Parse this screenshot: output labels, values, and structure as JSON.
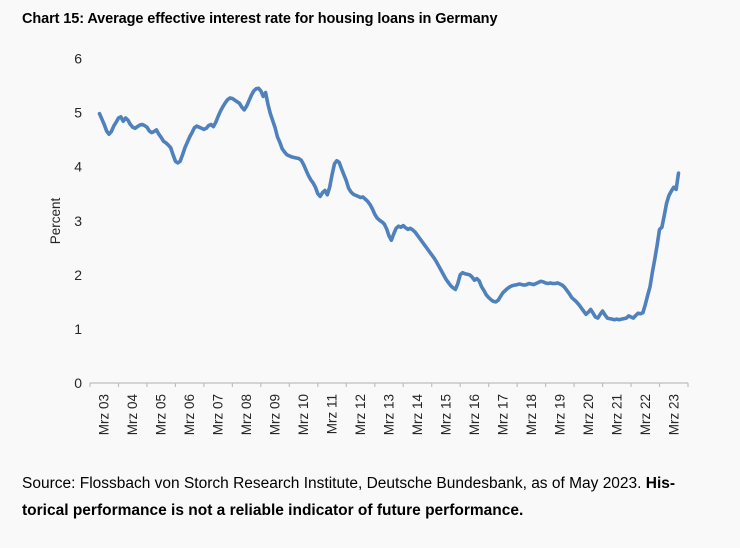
{
  "title": "Chart 15: Average effective interest rate for housing loans in Germany",
  "source": {
    "line1_regular": "Source: Flossbach von Storch Research Institute, Deutsche Bundesbank, as of May 2023. ",
    "line1_bold": "His-",
    "line2_bold": "torical performance is not a reliable indicator of future performance."
  },
  "chart_data": {
    "type": "line",
    "title": "Chart 15: Average effective interest rate for housing loans in Germany",
    "xlabel": "",
    "ylabel": "Percent",
    "ylim": [
      0,
      6
    ],
    "y_ticks": [
      0,
      1,
      2,
      3,
      4,
      5,
      6
    ],
    "grid": false,
    "legend": "none",
    "line_color": "#4f81bd",
    "axis_color": "#bfbfbf",
    "x_tick_labels": [
      "Mrz 03",
      "Mrz 04",
      "Mrz 05",
      "Mrz 06",
      "Mrz 07",
      "Mrz 08",
      "Mrz 09",
      "Mrz 10",
      "Mrz 11",
      "Mrz 12",
      "Mrz 13",
      "Mrz 14",
      "Mrz 15",
      "Mrz 16",
      "Mrz 17",
      "Mrz 18",
      "Mrz 19",
      "Mrz 20",
      "Mrz 21",
      "Mrz 22",
      "Mrz 23"
    ],
    "series": [
      {
        "name": "Average effective interest rate for housing loans in Germany",
        "frequency": "monthly",
        "start": "2003-01",
        "end": "2023-05",
        "values": [
          4.98,
          4.88,
          4.78,
          4.66,
          4.6,
          4.65,
          4.75,
          4.82,
          4.9,
          4.92,
          4.84,
          4.9,
          4.86,
          4.78,
          4.73,
          4.71,
          4.74,
          4.77,
          4.78,
          4.76,
          4.73,
          4.66,
          4.63,
          4.65,
          4.68,
          4.6,
          4.54,
          4.47,
          4.44,
          4.4,
          4.35,
          4.22,
          4.1,
          4.07,
          4.1,
          4.22,
          4.35,
          4.45,
          4.55,
          4.63,
          4.72,
          4.75,
          4.73,
          4.71,
          4.69,
          4.71,
          4.76,
          4.78,
          4.74,
          4.82,
          4.93,
          5.03,
          5.11,
          5.18,
          5.24,
          5.27,
          5.26,
          5.23,
          5.2,
          5.17,
          5.1,
          5.05,
          5.12,
          5.22,
          5.32,
          5.4,
          5.44,
          5.45,
          5.4,
          5.3,
          5.37,
          5.15,
          4.98,
          4.85,
          4.72,
          4.55,
          4.45,
          4.33,
          4.27,
          4.22,
          4.2,
          4.18,
          4.17,
          4.16,
          4.15,
          4.12,
          4.04,
          3.94,
          3.84,
          3.76,
          3.7,
          3.62,
          3.5,
          3.45,
          3.52,
          3.56,
          3.48,
          3.62,
          3.85,
          4.05,
          4.11,
          4.08,
          3.96,
          3.85,
          3.74,
          3.6,
          3.53,
          3.49,
          3.47,
          3.45,
          3.43,
          3.44,
          3.4,
          3.36,
          3.3,
          3.22,
          3.12,
          3.05,
          3.01,
          2.98,
          2.94,
          2.85,
          2.72,
          2.64,
          2.76,
          2.86,
          2.9,
          2.88,
          2.91,
          2.87,
          2.84,
          2.86,
          2.83,
          2.79,
          2.73,
          2.67,
          2.61,
          2.55,
          2.49,
          2.43,
          2.37,
          2.31,
          2.24,
          2.16,
          2.08,
          2.0,
          1.92,
          1.86,
          1.8,
          1.76,
          1.73,
          1.84,
          2.0,
          2.04,
          2.02,
          2.01,
          2.0,
          1.96,
          1.9,
          1.93,
          1.89,
          1.78,
          1.71,
          1.63,
          1.58,
          1.54,
          1.51,
          1.5,
          1.53,
          1.6,
          1.67,
          1.71,
          1.75,
          1.78,
          1.8,
          1.81,
          1.82,
          1.83,
          1.82,
          1.81,
          1.82,
          1.84,
          1.83,
          1.82,
          1.84,
          1.86,
          1.88,
          1.87,
          1.85,
          1.84,
          1.85,
          1.84,
          1.84,
          1.85,
          1.83,
          1.81,
          1.77,
          1.71,
          1.65,
          1.58,
          1.54,
          1.5,
          1.45,
          1.39,
          1.33,
          1.27,
          1.31,
          1.36,
          1.29,
          1.22,
          1.2,
          1.27,
          1.33,
          1.26,
          1.2,
          1.19,
          1.18,
          1.17,
          1.18,
          1.17,
          1.18,
          1.19,
          1.2,
          1.24,
          1.22,
          1.2,
          1.25,
          1.29,
          1.28,
          1.3,
          1.45,
          1.62,
          1.78,
          2.05,
          2.29,
          2.55,
          2.84,
          2.88,
          3.1,
          3.33,
          3.47,
          3.55,
          3.62,
          3.58,
          3.88
        ]
      }
    ]
  }
}
